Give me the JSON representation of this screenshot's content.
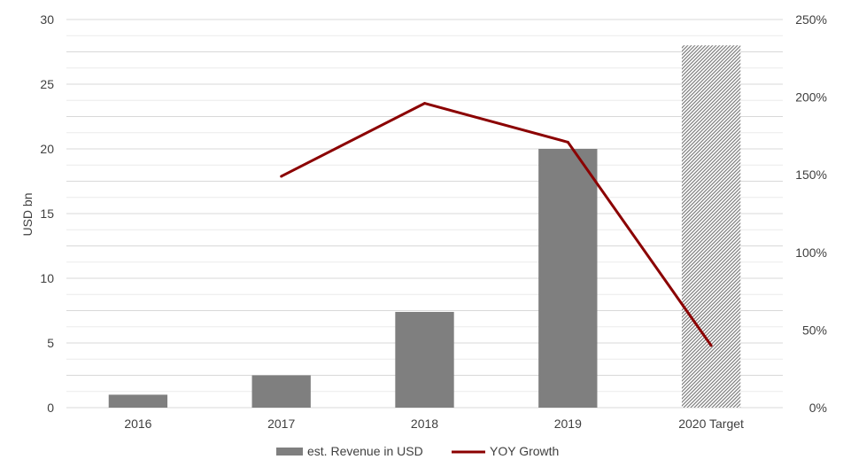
{
  "chart_data": {
    "type": "bar",
    "categories": [
      "2016",
      "2017",
      "2018",
      "2019",
      "2020 Target"
    ],
    "series": [
      {
        "name": "est. Revenue in USD",
        "type": "bar",
        "axis": "left",
        "values": [
          1.0,
          2.5,
          7.4,
          20.0,
          28.0
        ],
        "color": "#7f7f7f",
        "hatched_categories": [
          "2020 Target"
        ]
      },
      {
        "name": "YOY Growth",
        "type": "line",
        "axis": "right",
        "values": [
          null,
          1.49,
          1.96,
          1.71,
          0.4
        ],
        "color": "#8b0000"
      }
    ],
    "ylabel": "USD bn",
    "ylim": [
      0,
      30
    ],
    "y_ticks": [
      "0",
      "5",
      "10",
      "15",
      "20",
      "25",
      "30"
    ],
    "y2lim": [
      0,
      2.5
    ],
    "y2_ticks": [
      "0%",
      "50%",
      "100%",
      "150%",
      "200%",
      "250%"
    ],
    "grid": true,
    "legend_position": "bottom"
  }
}
